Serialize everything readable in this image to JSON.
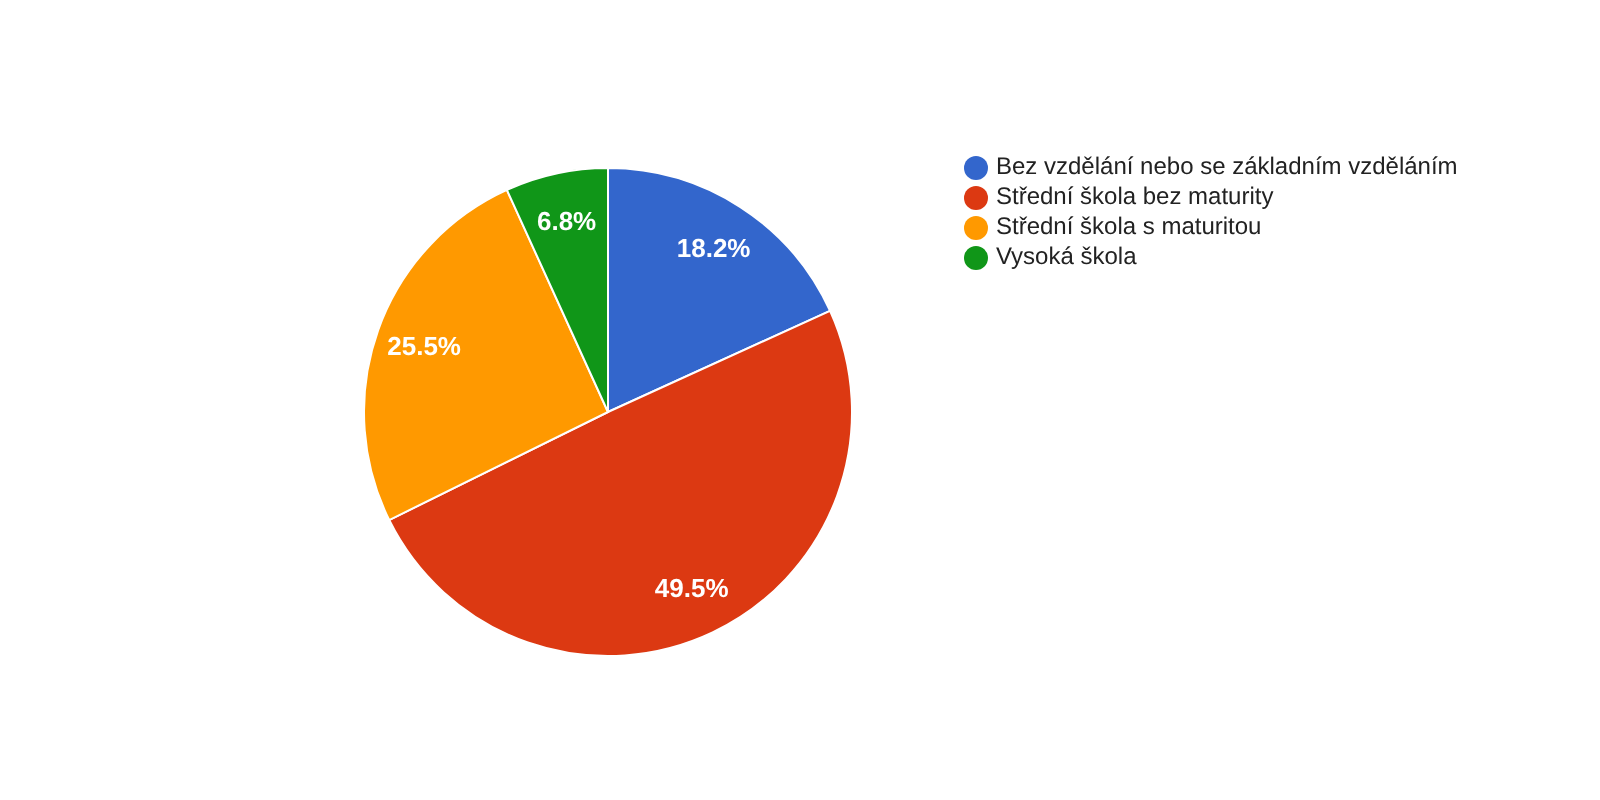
{
  "chart_data": {
    "type": "pie",
    "categories": [
      "Bez vzdělání nebo se základním vzděláním",
      "Střední škola bez maturity",
      "Střední škola s maturitou",
      "Vysoká škola"
    ],
    "values": [
      18.2,
      49.5,
      25.5,
      6.8
    ],
    "colors": [
      "#3366cc",
      "#dc3912",
      "#ff9900",
      "#109618"
    ],
    "value_labels": [
      "18.2%",
      "49.5%",
      "25.5%",
      "6.8%"
    ],
    "legend": "top right"
  }
}
